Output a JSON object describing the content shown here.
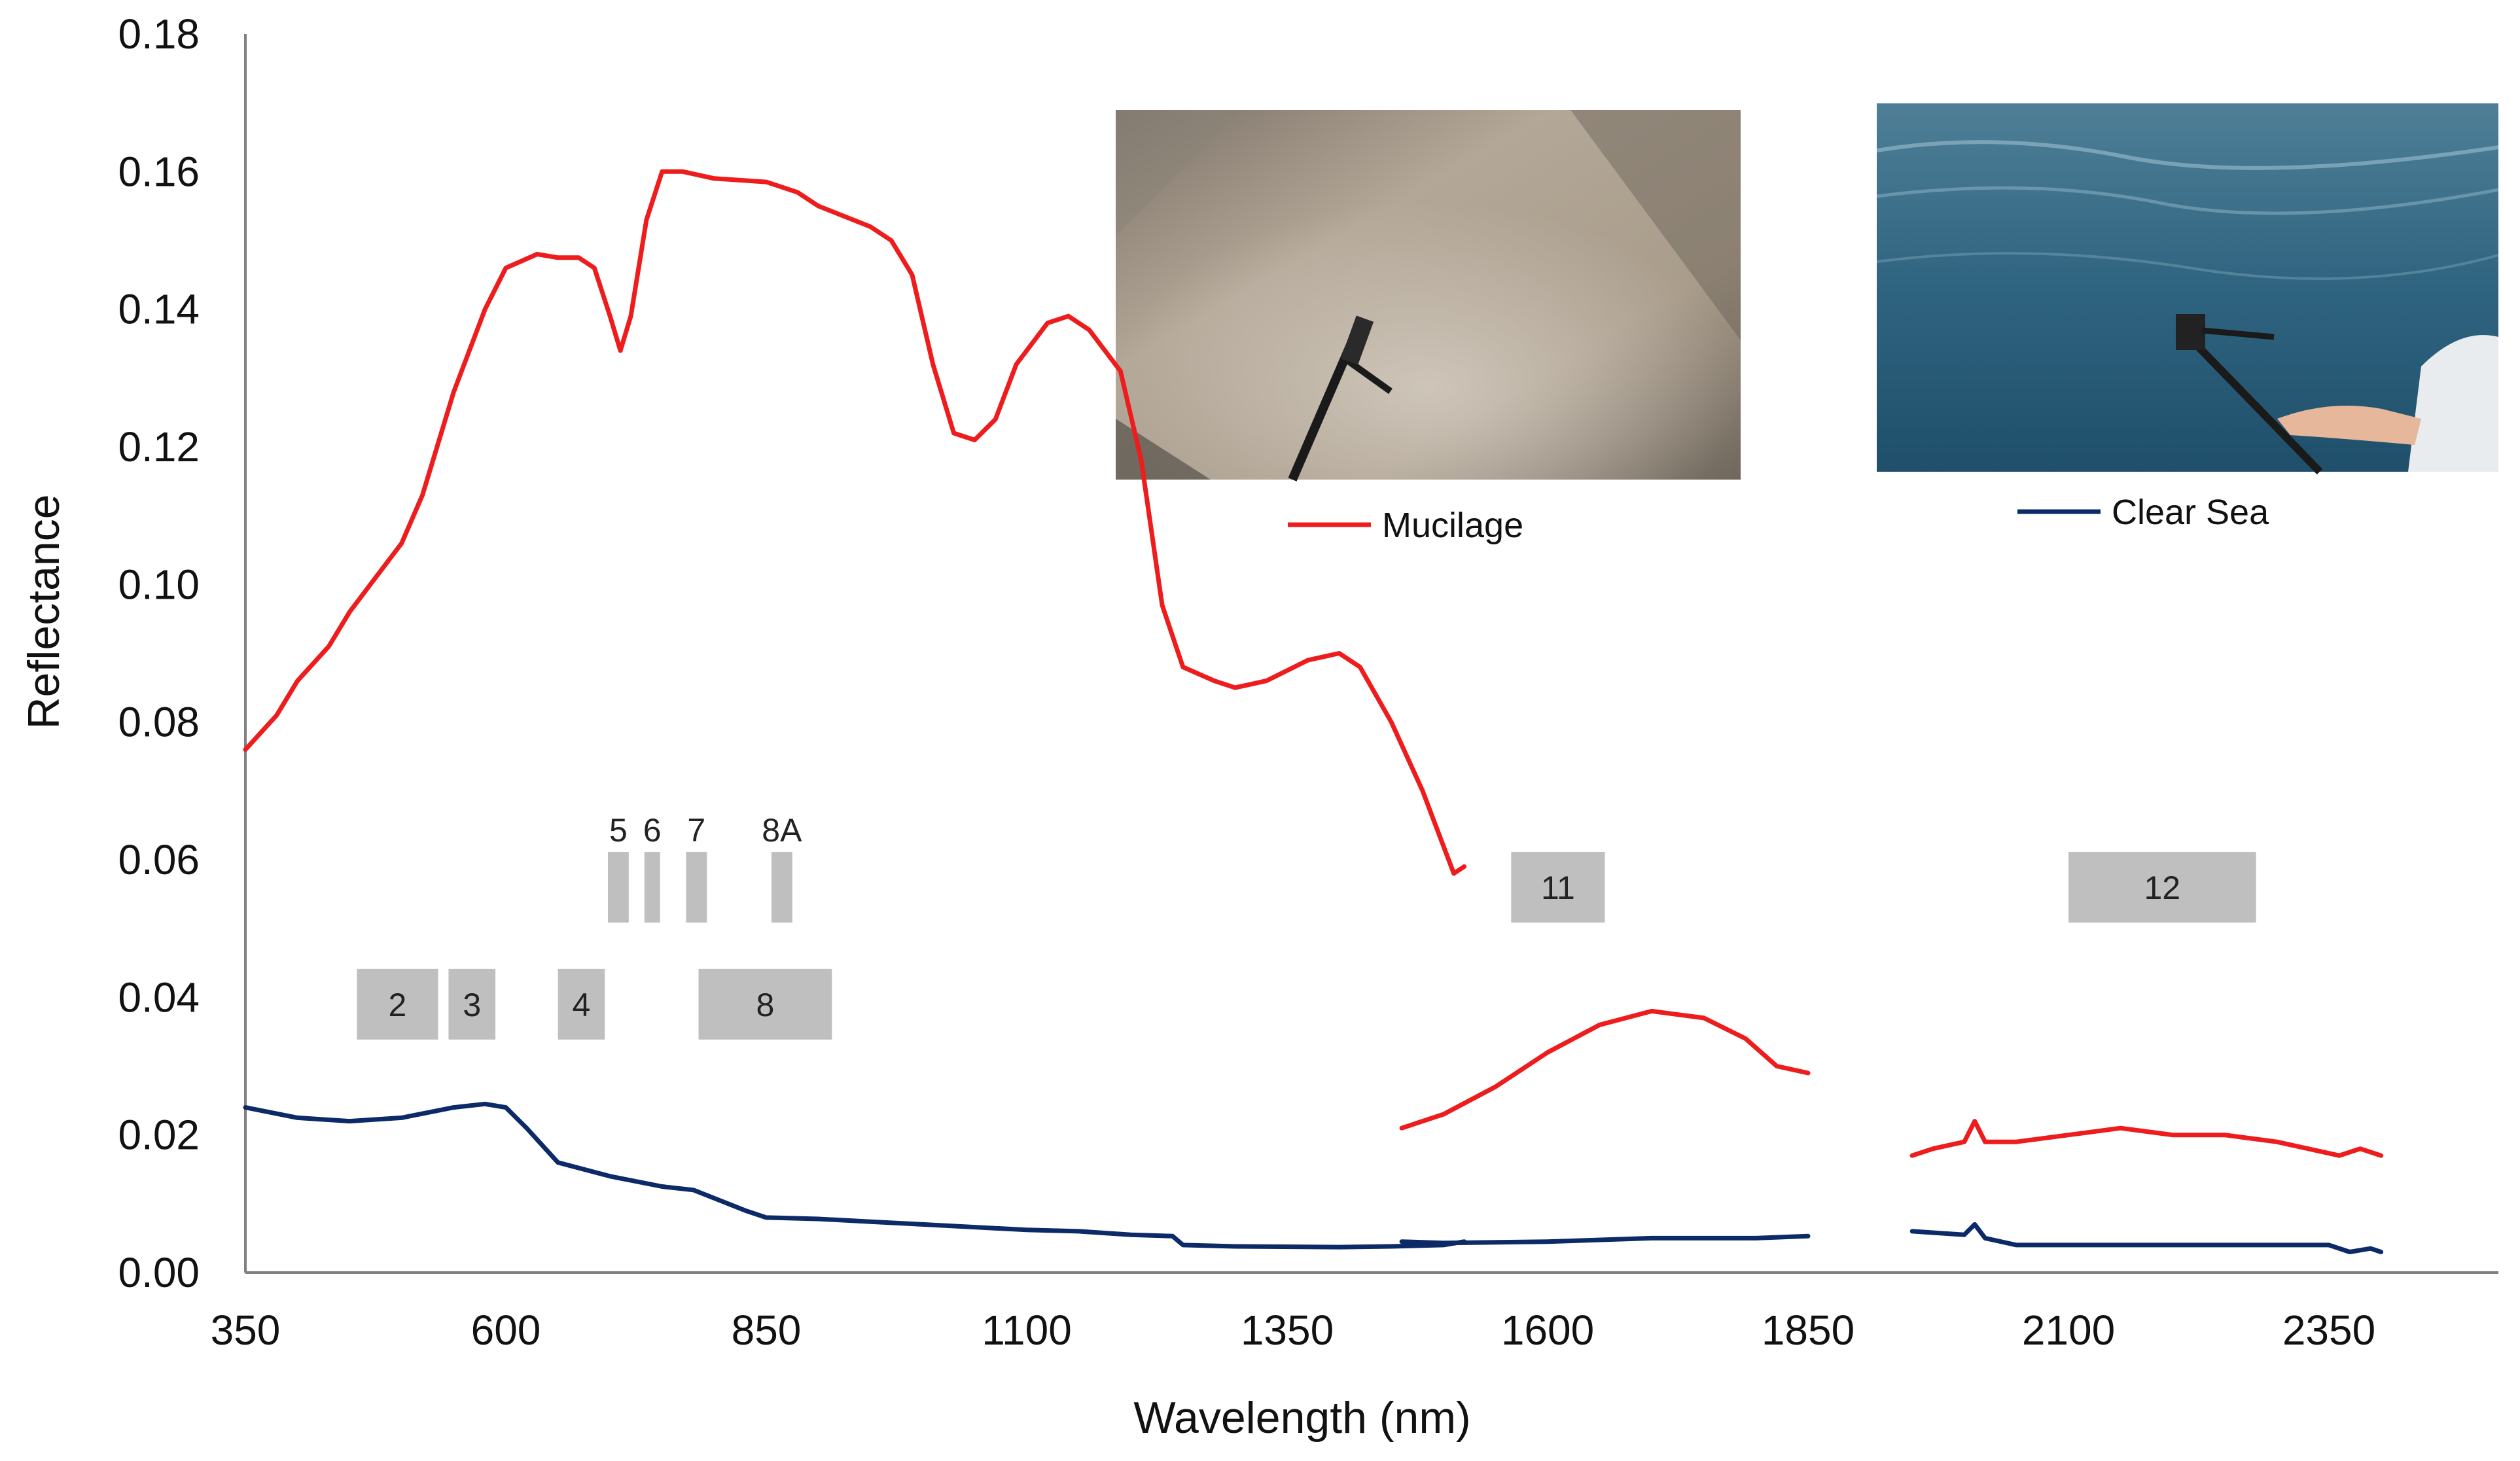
{
  "chart_data": {
    "type": "line",
    "xlabel": "Wavelength (nm)",
    "ylabel": "Reflectance",
    "xlim": [
      350,
      2600
    ],
    "ylim": [
      0,
      0.18
    ],
    "x_ticks": [
      350,
      600,
      850,
      1100,
      1350,
      1600,
      1850,
      2100,
      2350
    ],
    "y_ticks": [
      "0.00",
      "0.02",
      "0.04",
      "0.06",
      "0.08",
      "0.10",
      "0.12",
      "0.14",
      "0.16",
      "0.18"
    ],
    "grid": false,
    "series": [
      {
        "name": "Mucilage",
        "color": "#ee1c1c",
        "segments": [
          [
            [
              350,
              0.076
            ],
            [
              380,
              0.081
            ],
            [
              400,
              0.086
            ],
            [
              430,
              0.091
            ],
            [
              450,
              0.096
            ],
            [
              470,
              0.1
            ],
            [
              500,
              0.106
            ],
            [
              520,
              0.113
            ],
            [
              550,
              0.128
            ],
            [
              580,
              0.14
            ],
            [
              600,
              0.146
            ],
            [
              630,
              0.148
            ],
            [
              650,
              0.1475
            ],
            [
              670,
              0.1475
            ],
            [
              685,
              0.146
            ],
            [
              700,
              0.139
            ],
            [
              710,
              0.134
            ],
            [
              720,
              0.139
            ],
            [
              735,
              0.153
            ],
            [
              750,
              0.16
            ],
            [
              770,
              0.16
            ],
            [
              800,
              0.159
            ],
            [
              850,
              0.1585
            ],
            [
              880,
              0.157
            ],
            [
              900,
              0.155
            ],
            [
              950,
              0.152
            ],
            [
              970,
              0.15
            ],
            [
              990,
              0.145
            ],
            [
              1010,
              0.132
            ],
            [
              1030,
              0.122
            ],
            [
              1050,
              0.121
            ],
            [
              1070,
              0.124
            ],
            [
              1090,
              0.132
            ],
            [
              1120,
              0.138
            ],
            [
              1140,
              0.139
            ],
            [
              1160,
              0.137
            ],
            [
              1190,
              0.131
            ],
            [
              1210,
              0.118
            ],
            [
              1230,
              0.097
            ],
            [
              1250,
              0.088
            ],
            [
              1280,
              0.086
            ],
            [
              1300,
              0.085
            ],
            [
              1330,
              0.086
            ],
            [
              1370,
              0.089
            ],
            [
              1400,
              0.09
            ],
            [
              1420,
              0.088
            ],
            [
              1450,
              0.08
            ],
            [
              1480,
              0.07
            ],
            [
              1500,
              0.062
            ],
            [
              1510,
              0.058
            ],
            [
              1520,
              0.059
            ]
          ],
          [
            [
              1460,
              0.021
            ],
            [
              1500,
              0.023
            ],
            [
              1550,
              0.027
            ],
            [
              1600,
              0.032
            ],
            [
              1650,
              0.036
            ],
            [
              1700,
              0.038
            ],
            [
              1750,
              0.037
            ],
            [
              1790,
              0.034
            ],
            [
              1820,
              0.03
            ],
            [
              1850,
              0.029
            ]
          ],
          [
            [
              1950,
              0.017
            ],
            [
              1970,
              0.018
            ],
            [
              2000,
              0.019
            ],
            [
              2010,
              0.022
            ],
            [
              2020,
              0.019
            ],
            [
              2050,
              0.019
            ],
            [
              2100,
              0.02
            ],
            [
              2150,
              0.021
            ],
            [
              2200,
              0.02
            ],
            [
              2250,
              0.02
            ],
            [
              2300,
              0.019
            ],
            [
              2330,
              0.018
            ],
            [
              2360,
              0.017
            ],
            [
              2380,
              0.018
            ],
            [
              2400,
              0.017
            ]
          ]
        ]
      },
      {
        "name": "Clear Sea",
        "color": "#0d2a68",
        "segments": [
          [
            [
              350,
              0.024
            ],
            [
              400,
              0.0225
            ],
            [
              450,
              0.022
            ],
            [
              500,
              0.0225
            ],
            [
              550,
              0.024
            ],
            [
              580,
              0.0245
            ],
            [
              600,
              0.024
            ],
            [
              620,
              0.021
            ],
            [
              650,
              0.016
            ],
            [
              700,
              0.014
            ],
            [
              750,
              0.0125
            ],
            [
              780,
              0.012
            ],
            [
              830,
              0.009
            ],
            [
              850,
              0.008
            ],
            [
              900,
              0.0078
            ],
            [
              950,
              0.0074
            ],
            [
              1000,
              0.007
            ],
            [
              1100,
              0.0062
            ],
            [
              1150,
              0.006
            ],
            [
              1200,
              0.0055
            ],
            [
              1240,
              0.0053
            ],
            [
              1250,
              0.004
            ],
            [
              1300,
              0.0038
            ],
            [
              1400,
              0.0037
            ],
            [
              1450,
              0.0038
            ],
            [
              1500,
              0.004
            ],
            [
              1520,
              0.0045
            ]
          ],
          [
            [
              1460,
              0.0045
            ],
            [
              1500,
              0.0043
            ],
            [
              1600,
              0.0045
            ],
            [
              1700,
              0.005
            ],
            [
              1800,
              0.005
            ],
            [
              1850,
              0.0053
            ]
          ],
          [
            [
              1950,
              0.006
            ],
            [
              2000,
              0.0055
            ],
            [
              2010,
              0.007
            ],
            [
              2020,
              0.005
            ],
            [
              2050,
              0.004
            ],
            [
              2100,
              0.004
            ],
            [
              2200,
              0.004
            ],
            [
              2300,
              0.004
            ],
            [
              2350,
              0.004
            ],
            [
              2370,
              0.003
            ],
            [
              2390,
              0.0035
            ],
            [
              2400,
              0.003
            ]
          ]
        ]
      }
    ],
    "bands": [
      {
        "label": "2",
        "x0": 457,
        "x1": 535,
        "y": 0.039
      },
      {
        "label": "3",
        "x0": 545,
        "x1": 590,
        "y": 0.039
      },
      {
        "label": "4",
        "x0": 650,
        "x1": 695,
        "y": 0.039
      },
      {
        "label": "8",
        "x0": 785,
        "x1": 913,
        "y": 0.039
      },
      {
        "label": "5",
        "x0": 698,
        "x1": 718,
        "y": 0.056
      },
      {
        "label": "6",
        "x0": 733,
        "x1": 748,
        "y": 0.056
      },
      {
        "label": "7",
        "x0": 773,
        "x1": 793,
        "y": 0.056
      },
      {
        "label": "8A",
        "x0": 855,
        "x1": 875,
        "y": 0.056
      },
      {
        "label": "11",
        "x0": 1565,
        "x1": 1655,
        "y": 0.056
      },
      {
        "label": "12",
        "x0": 2100,
        "x1": 2280,
        "y": 0.056
      }
    ],
    "legend": [
      {
        "label": "Mucilage",
        "color": "#ee1c1c",
        "placement": "below-mucilage-photo"
      },
      {
        "label": "Clear Sea",
        "color": "#0d2a68",
        "placement": "below-sea-photo"
      }
    ],
    "photos": [
      {
        "name": "mucilage-photo",
        "subject": "mucilage covered sea surface with spectroradiometer probe"
      },
      {
        "name": "clear-sea-photo",
        "subject": "clear blue sea surface with spectroradiometer probe"
      }
    ]
  }
}
